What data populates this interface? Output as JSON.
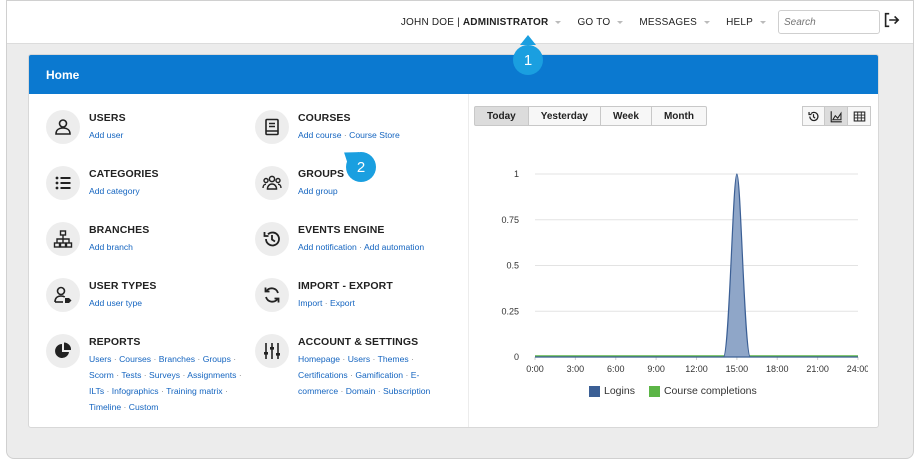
{
  "topnav": {
    "user_name": "JOHN DOE |",
    "role": "ADMINISTRATOR",
    "goto": "GO TO",
    "messages": "MESSAGES",
    "help": "HELP",
    "search_placeholder": "Search"
  },
  "panel": {
    "title": "Home"
  },
  "left_column": [
    {
      "title": "USERS",
      "icon": "user-icon",
      "links": [
        "Add user"
      ]
    },
    {
      "title": "CATEGORIES",
      "icon": "list-icon",
      "links": [
        "Add category"
      ]
    },
    {
      "title": "BRANCHES",
      "icon": "sitemap-icon",
      "links": [
        "Add branch"
      ]
    },
    {
      "title": "USER TYPES",
      "icon": "user-tag-icon",
      "links": [
        "Add user type"
      ]
    },
    {
      "title": "REPORTS",
      "icon": "pie-chart-icon",
      "lines": [
        [
          "Users",
          "Courses",
          "Branches",
          "Groups"
        ],
        [
          "Scorm",
          "Tests",
          "Surveys",
          "Assignments"
        ],
        [
          "ILTs",
          "Infographics",
          "Training matrix"
        ],
        [
          "Timeline",
          "Custom"
        ]
      ]
    }
  ],
  "right_column": [
    {
      "title": "COURSES",
      "icon": "book-icon",
      "links": [
        "Add course",
        "Course Store"
      ]
    },
    {
      "title": "GROUPS",
      "icon": "group-icon",
      "links": [
        "Add group"
      ]
    },
    {
      "title": "EVENTS ENGINE",
      "icon": "history-icon",
      "links": [
        "Add notification",
        "Add automation"
      ]
    },
    {
      "title": "IMPORT - EXPORT",
      "icon": "sync-icon",
      "links": [
        "Import",
        "Export"
      ]
    },
    {
      "title": "ACCOUNT & SETTINGS",
      "icon": "sliders-icon",
      "lines": [
        [
          "Homepage",
          "Users",
          "Themes"
        ],
        [
          "Certifications",
          "Gamification",
          "E-"
        ],
        [
          "commerce",
          "Domain",
          "Subscription"
        ]
      ]
    }
  ],
  "time_tabs": [
    "Today",
    "Yesterday",
    "Week",
    "Month"
  ],
  "active_tab": "Today",
  "view_buttons": [
    "history-icon",
    "area-chart-icon",
    "table-icon"
  ],
  "callouts": [
    "1",
    "2"
  ],
  "colors": {
    "header": "#0b79d0",
    "logins": "#3b5f95",
    "completions": "#5cb547",
    "callout": "#1a9fe0"
  },
  "chart_data": {
    "type": "area",
    "x": [
      "0:00",
      "3:00",
      "6:00",
      "9:00",
      "12:00",
      "15:00",
      "18:00",
      "21:00",
      "24:00"
    ],
    "ytick_labels": [
      "0",
      "0.25",
      "0.5",
      "0.75",
      "1"
    ],
    "ylim": [
      0,
      1
    ],
    "xlim": [
      0,
      24
    ],
    "grid": true,
    "legend_position": "bottom",
    "series": [
      {
        "name": "Logins",
        "color": "#3b5f95",
        "points": [
          [
            0,
            0
          ],
          [
            14,
            0
          ],
          [
            15,
            1
          ],
          [
            16,
            0
          ],
          [
            24,
            0
          ]
        ]
      },
      {
        "name": "Course completions",
        "color": "#5cb547",
        "points": [
          [
            0,
            0
          ],
          [
            24,
            0
          ]
        ]
      }
    ]
  }
}
